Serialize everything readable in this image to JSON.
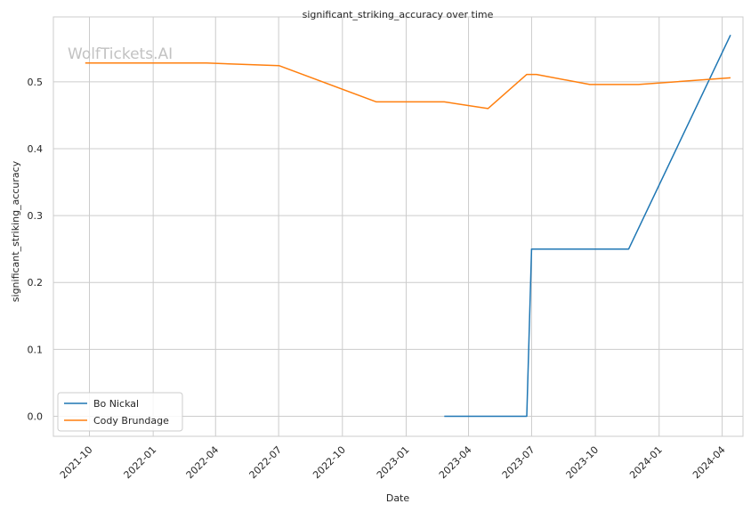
{
  "chart_data": {
    "type": "line",
    "title": "significant_striking_accuracy over time",
    "xlabel": "Date",
    "ylabel": "significant_striking_accuracy",
    "watermark": "WolfTickets.AI",
    "grid": true,
    "legend_position": "lower-left",
    "xlim": [
      "2021-08-10",
      "2024-05-01"
    ],
    "ylim": [
      -0.03,
      0.597
    ],
    "x_ticks": [
      "2021-10-01",
      "2022-01-01",
      "2022-04-01",
      "2022-07-01",
      "2022-10-01",
      "2023-01-01",
      "2023-04-01",
      "2023-07-01",
      "2023-10-01",
      "2024-01-01",
      "2024-04-01"
    ],
    "x_tick_labels": [
      "2021-10",
      "2022-01",
      "2022-04",
      "2022-07",
      "2022-10",
      "2023-01",
      "2023-04",
      "2023-07",
      "2023-10",
      "2024-01",
      "2024-04"
    ],
    "y_ticks": [
      0.0,
      0.1,
      0.2,
      0.3,
      0.4,
      0.5
    ],
    "y_tick_labels": [
      "0.0",
      "0.1",
      "0.2",
      "0.3",
      "0.4",
      "0.5"
    ],
    "series": [
      {
        "name": "Bo Nickal",
        "color": "#1f77b4",
        "x": [
          "2023-02-25",
          "2023-06-24",
          "2023-07-01",
          "2023-11-18",
          "2024-04-13"
        ],
        "y": [
          0.0,
          0.0,
          0.25,
          0.25,
          0.57
        ]
      },
      {
        "name": "Cody Brundage",
        "color": "#ff7f0e",
        "x": [
          "2021-09-25",
          "2022-03-19",
          "2022-07-02",
          "2022-11-19",
          "2023-02-25",
          "2023-04-29",
          "2023-06-24",
          "2023-07-08",
          "2023-09-23",
          "2023-12-02",
          "2024-04-13"
        ],
        "y": [
          0.528,
          0.528,
          0.524,
          0.47,
          0.47,
          0.46,
          0.511,
          0.511,
          0.496,
          0.496,
          0.506
        ]
      }
    ]
  }
}
